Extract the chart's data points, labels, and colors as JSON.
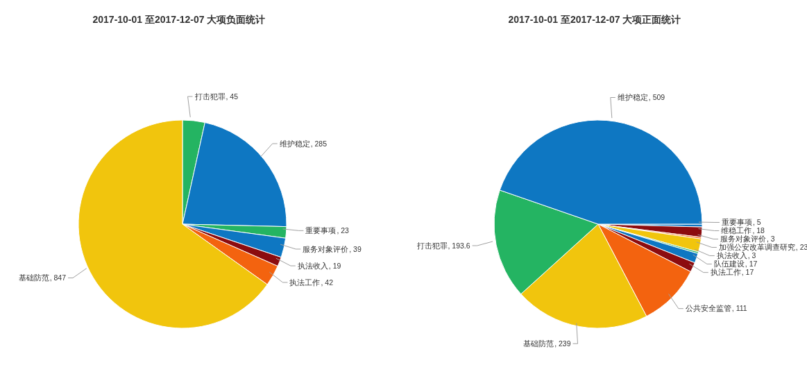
{
  "chart_data": [
    {
      "type": "pie",
      "title": "2017-10-01 至2017-12-07 大项负面统计",
      "categories": [
        "打击犯罪",
        "维护稳定",
        "重要事项",
        "服务对象评价",
        "执法收入",
        "执法工作",
        "基础防范"
      ],
      "values": [
        45,
        285,
        23,
        39,
        19,
        42,
        847
      ],
      "value_labels": [
        ", 45",
        ", 285",
        ", 23",
        ", 39",
        ", 19",
        ", 42",
        ", 847"
      ],
      "colors": [
        "#24b462",
        "#0e77c2",
        "#24b462",
        "#0e77c2",
        "#8c0c0f",
        "#f3630f",
        "#f1c50d"
      ]
    },
    {
      "type": "pie",
      "title": "2017-10-01 至2017-12-07 大项正面统计",
      "categories": [
        "重要事项",
        "维稳工作",
        "服务对象评价",
        "加强公安改革调查研究",
        "执法收入",
        "队伍建设",
        "执法工作",
        "公共安全监管",
        "基础防范",
        "打击犯罪",
        "维护稳定"
      ],
      "values": [
        5,
        18,
        3,
        23,
        3,
        17,
        17,
        111,
        239,
        193.6,
        509
      ],
      "value_labels": [
        ", 5",
        ", 18",
        ", 3",
        ", 23",
        ", 3",
        ", 17",
        ", 17",
        ", 111",
        ", 239",
        ", 193.6",
        ", 509"
      ],
      "colors": [
        "#0e77c2",
        "#8c0c0f",
        "#f3630f",
        "#f1c50d",
        "#24b462",
        "#0e77c2",
        "#8c0c0f",
        "#f3630f",
        "#f1c50d",
        "#24b462",
        "#0e77c2"
      ]
    }
  ]
}
